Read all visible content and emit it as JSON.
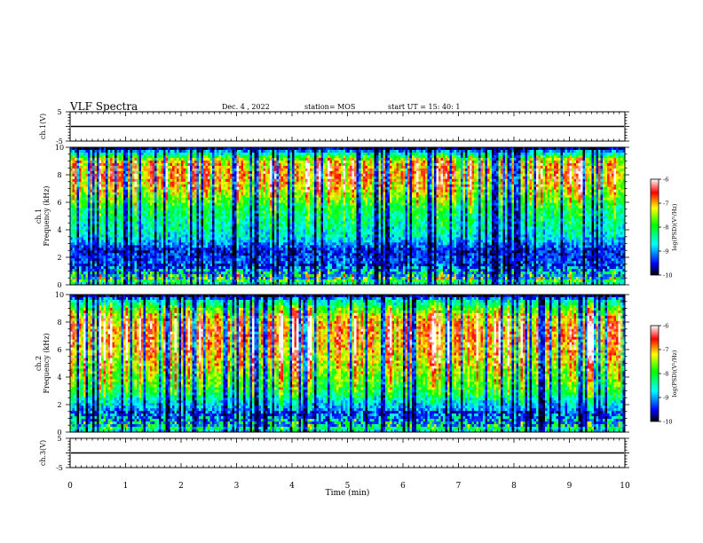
{
  "header": {
    "title": "VLF Spectra",
    "date": "Dec. 4 , 2022",
    "station": "station= MOS",
    "start_ut": "start  UT =   15: 40: 1"
  },
  "colorbar": {
    "ticks": [
      "-6",
      "-7",
      "-8",
      "-9",
      "-10"
    ],
    "label": "log(PSD)(V²/Hz)"
  },
  "chart_data": [
    {
      "type": "line",
      "name": "ch1-waveform",
      "ylabel": "ch.1(V)",
      "ylim": [
        -5,
        5
      ],
      "yticks": [
        "5",
        "-5"
      ],
      "xlim": [
        0,
        10
      ],
      "approx_value": 0
    },
    {
      "type": "heatmap",
      "name": "ch1-spectrogram",
      "ylabel": "ch.1\nFrequency (kHz)",
      "ylim": [
        0,
        10
      ],
      "yticks": [
        "10",
        "8",
        "6",
        "4",
        "2",
        "0"
      ],
      "xlim": [
        0,
        10
      ],
      "color_scale": {
        "min": -10,
        "max": -6,
        "colors": [
          "#000000",
          "#0000ff",
          "#00ffff",
          "#00ff00",
          "#ffff00",
          "#ff0000",
          "#ffffff"
        ]
      },
      "band_profile": [
        [
          0,
          0.35
        ],
        [
          0.5,
          0.7
        ],
        [
          1.5,
          0.2
        ],
        [
          2.5,
          0.15
        ],
        [
          3.5,
          0.35
        ],
        [
          5.5,
          0.5
        ],
        [
          7,
          0.75
        ],
        [
          8,
          0.85
        ],
        [
          9,
          0.75
        ],
        [
          9.6,
          0.35
        ],
        [
          10,
          0.0
        ]
      ]
    },
    {
      "type": "heatmap",
      "name": "ch2-spectrogram",
      "ylabel": "ch.2\nFrequency (kHz)",
      "ylim": [
        0,
        10
      ],
      "yticks": [
        "10",
        "8",
        "6",
        "4",
        "2",
        "0"
      ],
      "xlim": [
        0,
        10
      ],
      "color_scale": {
        "min": -10,
        "max": -6,
        "colors": [
          "#000000",
          "#0000ff",
          "#00ffff",
          "#00ff00",
          "#ffff00",
          "#ff0000",
          "#ffffff"
        ]
      },
      "band_profile": [
        [
          0,
          0.35
        ],
        [
          0.5,
          0.55
        ],
        [
          1.5,
          0.25
        ],
        [
          2.2,
          0.35
        ],
        [
          3,
          0.55
        ],
        [
          5,
          0.75
        ],
        [
          6.5,
          0.85
        ],
        [
          7.5,
          0.88
        ],
        [
          8.5,
          0.75
        ],
        [
          9.5,
          0.4
        ],
        [
          10,
          0.0
        ]
      ]
    },
    {
      "type": "line",
      "name": "ch3-waveform",
      "ylabel": "ch.3(V)",
      "ylim": [
        -5,
        5
      ],
      "yticks": [
        "5",
        "-5"
      ],
      "xlim": [
        0,
        10
      ],
      "approx_value": 0
    }
  ],
  "x_axis": {
    "label": "Time  (min)",
    "range": [
      0,
      10
    ],
    "ticks": [
      "0",
      "1",
      "2",
      "3",
      "4",
      "5",
      "6",
      "7",
      "8",
      "9",
      "10"
    ]
  }
}
